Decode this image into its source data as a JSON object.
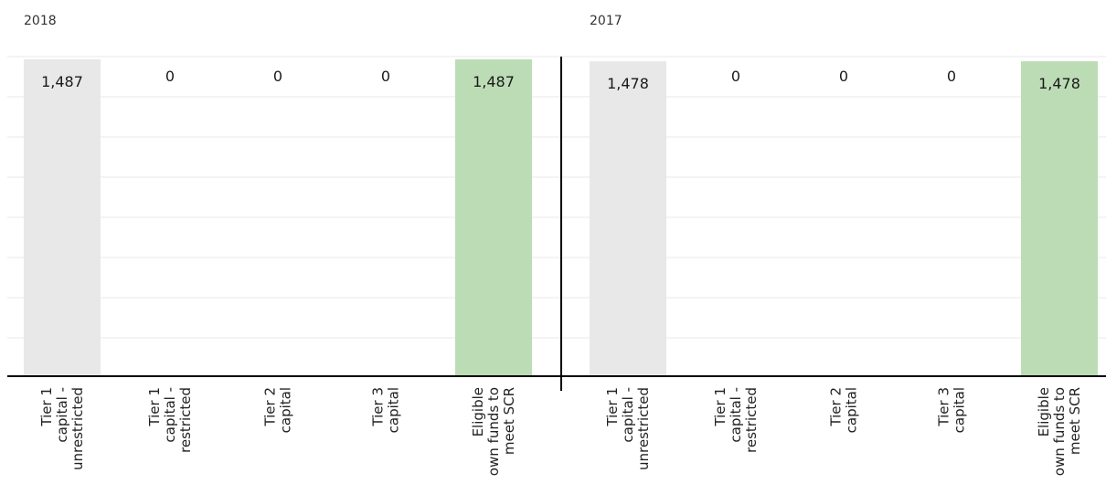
{
  "chart_data": [
    {
      "type": "bar",
      "title": "2018",
      "categories": [
        [
          "Tier 1",
          "capital -",
          "unrestricted"
        ],
        [
          "Tier 1",
          "capital -",
          "restricted"
        ],
        [
          "Tier 2",
          "capital"
        ],
        [
          "Tier 3",
          "capital"
        ],
        [
          "Eligible",
          "own funds to",
          "meet SCR"
        ]
      ],
      "values": [
        1487,
        0,
        0,
        0,
        1487
      ],
      "value_labels": [
        "1,487",
        "0",
        "0",
        "0",
        "1,487"
      ],
      "ylim": [
        0,
        1500
      ],
      "grid": true,
      "colors": [
        "#e8e8e8",
        "#e8e8e8",
        "#e8e8e8",
        "#e8e8e8",
        "#bcdcb5"
      ]
    },
    {
      "type": "bar",
      "title": "2017",
      "categories": [
        [
          "Tier 1",
          "capital -",
          "unrestricted"
        ],
        [
          "Tier 1",
          "capital -",
          "restricted"
        ],
        [
          "Tier 2",
          "capital"
        ],
        [
          "Tier 3",
          "capital"
        ],
        [
          "Eligible",
          "own funds to",
          "meet SCR"
        ]
      ],
      "values": [
        1478,
        0,
        0,
        0,
        1478
      ],
      "value_labels": [
        "1,478",
        "0",
        "0",
        "0",
        "1,478"
      ],
      "ylim": [
        0,
        1500
      ],
      "grid": true,
      "colors": [
        "#e8e8e8",
        "#e8e8e8",
        "#e8e8e8",
        "#e8e8e8",
        "#bcdcb5"
      ]
    }
  ]
}
